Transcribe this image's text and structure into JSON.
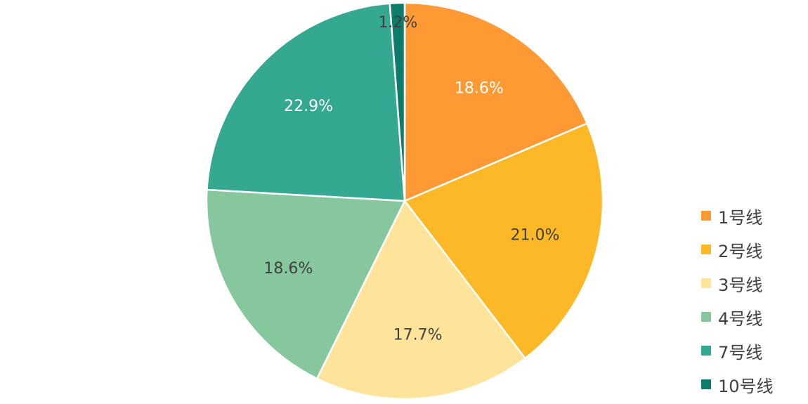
{
  "chart_data": {
    "type": "pie",
    "title": "",
    "legend_position": "right",
    "slices": [
      {
        "label": "1号线",
        "value": 18.6,
        "display": "18.6%",
        "color": "#FF9933",
        "label_color": "#FFFFFF"
      },
      {
        "label": "2号线",
        "value": 21.0,
        "display": "21.0%",
        "color": "#FDB827",
        "label_color": "#404040"
      },
      {
        "label": "3号线",
        "value": 17.7,
        "display": "17.7%",
        "color": "#FDE49A",
        "label_color": "#404040"
      },
      {
        "label": "4号线",
        "value": 18.6,
        "display": "18.6%",
        "color": "#86C79D",
        "label_color": "#404040"
      },
      {
        "label": "7号线",
        "value": 22.9,
        "display": "22.9%",
        "color": "#35A892",
        "label_color": "#FFFFFF"
      },
      {
        "label": "10号线",
        "value": 1.2,
        "display": "1.2%",
        "color": "#0E7C6B",
        "label_color": "#404040"
      }
    ]
  }
}
